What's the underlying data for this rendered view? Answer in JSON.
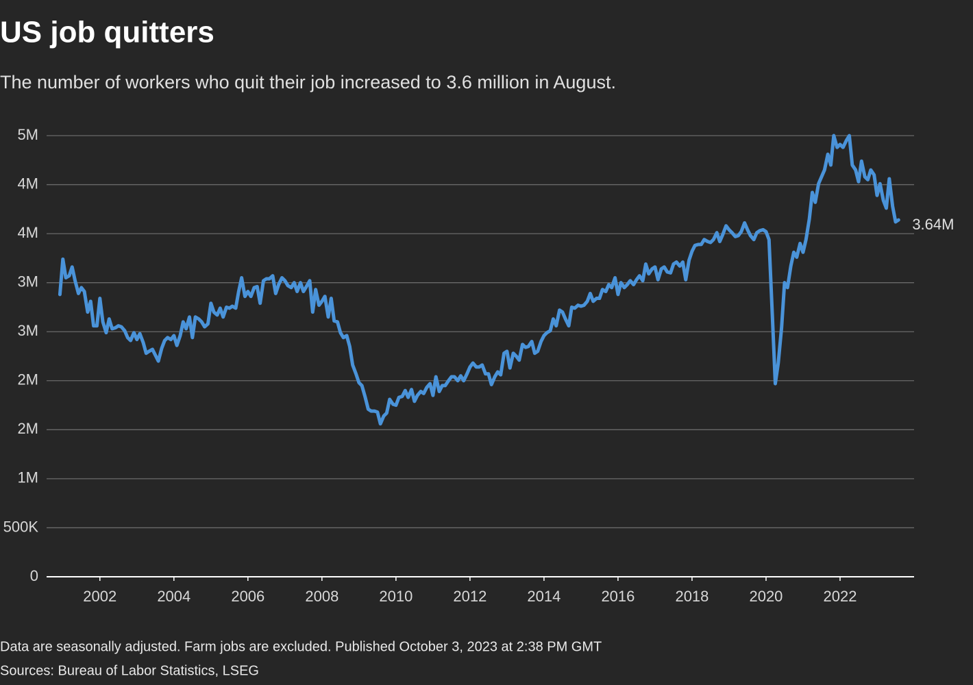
{
  "chart_data": {
    "type": "line",
    "title": "US job quitters",
    "subtitle": "The number of workers who quit their job increased to 3.6 million in August.",
    "footnote": "Data are seasonally adjusted. Farm jobs are excluded. Published October 3, 2023 at 2:38 PM GMT",
    "source": "Sources: Bureau of Labor Statistics, LSEG",
    "color": "#4a93d9",
    "grid": true,
    "xlim": [
      2000.56,
      2024
    ],
    "xticks": [
      2002,
      2004,
      2006,
      2008,
      2010,
      2012,
      2014,
      2016,
      2018,
      2020,
      2022
    ],
    "ylim": [
      0,
      4.5
    ],
    "yticks": [
      0,
      {
        "value": 0.5,
        "label": "500K"
      },
      {
        "value": 1,
        "label": "1M"
      },
      {
        "value": 1.5,
        "label": "2M"
      },
      {
        "value": 2,
        "label": "2M"
      },
      {
        "value": 2.5,
        "label": "3M"
      },
      {
        "value": 3,
        "label": "3M"
      },
      {
        "value": 3.5,
        "label": "4M"
      },
      {
        "value": 4,
        "label": "4M"
      },
      {
        "value": 4.5,
        "label": "5M"
      }
    ],
    "last_value_label": "3.64M",
    "x": [
      2000.92,
      2001.0,
      2001.08,
      2001.17,
      2001.25,
      2001.33,
      2001.42,
      2001.5,
      2001.58,
      2001.67,
      2001.75,
      2001.83,
      2001.92,
      2002.0,
      2002.08,
      2002.17,
      2002.25,
      2002.33,
      2002.42,
      2002.5,
      2002.58,
      2002.67,
      2002.75,
      2002.83,
      2002.92,
      2003.0,
      2003.08,
      2003.17,
      2003.25,
      2003.33,
      2003.42,
      2003.5,
      2003.58,
      2003.67,
      2003.75,
      2003.83,
      2003.92,
      2004.0,
      2004.08,
      2004.17,
      2004.25,
      2004.33,
      2004.42,
      2004.5,
      2004.58,
      2004.67,
      2004.75,
      2004.83,
      2004.92,
      2005.0,
      2005.08,
      2005.17,
      2005.25,
      2005.33,
      2005.42,
      2005.5,
      2005.58,
      2005.67,
      2005.75,
      2005.83,
      2005.92,
      2006.0,
      2006.08,
      2006.17,
      2006.25,
      2006.33,
      2006.42,
      2006.5,
      2006.58,
      2006.67,
      2006.75,
      2006.83,
      2006.92,
      2007.0,
      2007.08,
      2007.17,
      2007.25,
      2007.33,
      2007.42,
      2007.5,
      2007.58,
      2007.67,
      2007.75,
      2007.83,
      2007.92,
      2008.0,
      2008.08,
      2008.17,
      2008.25,
      2008.33,
      2008.42,
      2008.5,
      2008.58,
      2008.67,
      2008.75,
      2008.83,
      2008.92,
      2009.0,
      2009.08,
      2009.17,
      2009.25,
      2009.33,
      2009.42,
      2009.5,
      2009.58,
      2009.67,
      2009.75,
      2009.83,
      2009.92,
      2010.0,
      2010.08,
      2010.17,
      2010.25,
      2010.33,
      2010.42,
      2010.5,
      2010.58,
      2010.67,
      2010.75,
      2010.83,
      2010.92,
      2011.0,
      2011.08,
      2011.17,
      2011.25,
      2011.33,
      2011.42,
      2011.5,
      2011.58,
      2011.67,
      2011.75,
      2011.83,
      2011.92,
      2012.0,
      2012.08,
      2012.17,
      2012.25,
      2012.33,
      2012.42,
      2012.5,
      2012.58,
      2012.67,
      2012.75,
      2012.83,
      2012.92,
      2013.0,
      2013.08,
      2013.17,
      2013.25,
      2013.33,
      2013.42,
      2013.5,
      2013.58,
      2013.67,
      2013.75,
      2013.83,
      2013.92,
      2014.0,
      2014.08,
      2014.17,
      2014.25,
      2014.33,
      2014.42,
      2014.5,
      2014.58,
      2014.67,
      2014.75,
      2014.83,
      2014.92,
      2015.0,
      2015.08,
      2015.17,
      2015.25,
      2015.33,
      2015.42,
      2015.5,
      2015.58,
      2015.67,
      2015.75,
      2015.83,
      2015.92,
      2016.0,
      2016.08,
      2016.17,
      2016.25,
      2016.33,
      2016.42,
      2016.5,
      2016.58,
      2016.67,
      2016.75,
      2016.83,
      2016.92,
      2017.0,
      2017.08,
      2017.17,
      2017.25,
      2017.33,
      2017.42,
      2017.5,
      2017.58,
      2017.67,
      2017.75,
      2017.83,
      2017.92,
      2018.0,
      2018.08,
      2018.17,
      2018.25,
      2018.33,
      2018.42,
      2018.5,
      2018.58,
      2018.67,
      2018.75,
      2018.83,
      2018.92,
      2019.0,
      2019.08,
      2019.17,
      2019.25,
      2019.33,
      2019.42,
      2019.5,
      2019.58,
      2019.67,
      2019.75,
      2019.83,
      2019.92,
      2020.0,
      2020.08,
      2020.17,
      2020.25,
      2020.33,
      2020.42,
      2020.5,
      2020.58,
      2020.67,
      2020.75,
      2020.83,
      2020.92,
      2021.0,
      2021.08,
      2021.17,
      2021.25,
      2021.33,
      2021.42,
      2021.5,
      2021.58,
      2021.67,
      2021.75,
      2021.83,
      2021.92,
      2022.0,
      2022.08,
      2022.17,
      2022.25,
      2022.33,
      2022.42,
      2022.5,
      2022.58,
      2022.67,
      2022.75,
      2022.83,
      2022.92,
      2023.0,
      2023.08,
      2023.17,
      2023.25,
      2023.33,
      2023.42,
      2023.5,
      2023.58
    ],
    "values": [
      2.88,
      3.24,
      3.05,
      3.07,
      3.16,
      3.02,
      2.89,
      2.95,
      2.91,
      2.7,
      2.81,
      2.56,
      2.56,
      2.84,
      2.6,
      2.49,
      2.63,
      2.53,
      2.54,
      2.56,
      2.55,
      2.51,
      2.44,
      2.41,
      2.49,
      2.42,
      2.48,
      2.39,
      2.28,
      2.3,
      2.32,
      2.26,
      2.2,
      2.33,
      2.41,
      2.44,
      2.42,
      2.46,
      2.36,
      2.46,
      2.6,
      2.53,
      2.65,
      2.44,
      2.65,
      2.63,
      2.6,
      2.55,
      2.58,
      2.79,
      2.7,
      2.67,
      2.74,
      2.65,
      2.75,
      2.74,
      2.76,
      2.74,
      2.91,
      3.05,
      2.86,
      2.91,
      2.86,
      2.95,
      2.96,
      2.79,
      3.02,
      3.04,
      3.04,
      3.07,
      2.89,
      2.98,
      3.05,
      3.02,
      2.97,
      2.95,
      3.0,
      2.91,
      3.0,
      2.91,
      2.96,
      3.02,
      2.7,
      2.93,
      2.77,
      2.81,
      2.86,
      2.65,
      2.84,
      2.61,
      2.6,
      2.49,
      2.44,
      2.46,
      2.35,
      2.16,
      2.07,
      1.98,
      1.95,
      1.83,
      1.71,
      1.69,
      1.69,
      1.68,
      1.56,
      1.64,
      1.67,
      1.81,
      1.76,
      1.75,
      1.83,
      1.84,
      1.9,
      1.83,
      1.91,
      1.79,
      1.85,
      1.89,
      1.87,
      1.93,
      1.97,
      1.85,
      2.04,
      1.89,
      1.95,
      1.95,
      2.0,
      2.04,
      2.04,
      2.0,
      2.05,
      2.0,
      2.07,
      2.14,
      2.18,
      2.14,
      2.14,
      2.16,
      2.07,
      2.07,
      1.96,
      2.04,
      2.09,
      2.06,
      2.28,
      2.3,
      2.13,
      2.28,
      2.25,
      2.21,
      2.37,
      2.34,
      2.35,
      2.4,
      2.28,
      2.3,
      2.4,
      2.46,
      2.49,
      2.51,
      2.63,
      2.56,
      2.72,
      2.7,
      2.63,
      2.56,
      2.75,
      2.74,
      2.77,
      2.76,
      2.77,
      2.81,
      2.89,
      2.81,
      2.84,
      2.84,
      2.93,
      2.91,
      2.98,
      2.95,
      3.05,
      2.88,
      3.0,
      2.95,
      2.98,
      3.02,
      2.98,
      3.03,
      3.07,
      3.02,
      3.19,
      3.09,
      3.14,
      3.16,
      3.03,
      3.14,
      3.16,
      3.11,
      3.1,
      3.19,
      3.21,
      3.17,
      3.21,
      3.03,
      3.23,
      3.32,
      3.38,
      3.39,
      3.39,
      3.44,
      3.42,
      3.41,
      3.44,
      3.51,
      3.42,
      3.49,
      3.58,
      3.54,
      3.51,
      3.47,
      3.48,
      3.52,
      3.61,
      3.54,
      3.48,
      3.44,
      3.51,
      3.53,
      3.54,
      3.52,
      3.44,
      2.67,
      1.97,
      2.18,
      2.54,
      3.0,
      2.95,
      3.17,
      3.31,
      3.26,
      3.4,
      3.31,
      3.44,
      3.65,
      3.92,
      3.82,
      4.01,
      4.08,
      4.15,
      4.31,
      4.2,
      4.5,
      4.38,
      4.41,
      4.38,
      4.45,
      4.5,
      4.2,
      4.15,
      4.03,
      4.24,
      4.08,
      4.05,
      4.15,
      4.1,
      3.89,
      4.01,
      3.84,
      3.76,
      4.06,
      3.78,
      3.62,
      3.64
    ]
  }
}
